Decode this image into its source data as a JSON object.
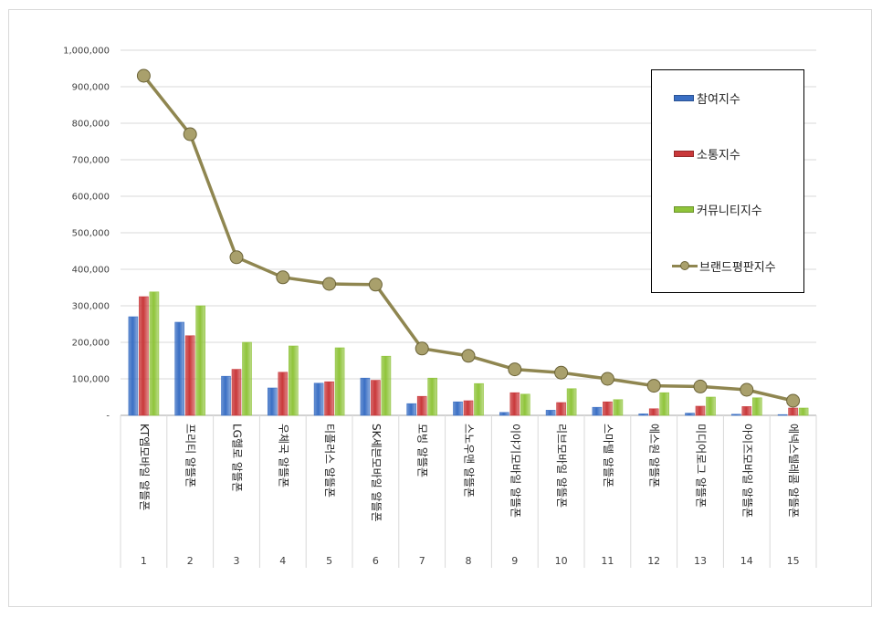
{
  "chart_data": {
    "type": "bar+line",
    "categories": [
      "KT엠모바일 알뜰폰",
      "프리티 알뜰폰",
      "LG헬로 알뜰폰",
      "우체국 알뜰폰",
      "티플러스 알뜰폰",
      "SK세븐모바일 알뜰폰",
      "모빙 알뜰폰",
      "스노우맨 알뜰폰",
      "이야기모바일 알뜰폰",
      "리브모바일 알뜰폰",
      "스마텔 알뜰폰",
      "에스원 알뜰폰",
      "미디어로그 알뜰폰",
      "아이즈모바일 알뜰폰",
      "에넥스텔레콤 알뜰폰"
    ],
    "ranks": [
      "1",
      "2",
      "3",
      "4",
      "5",
      "6",
      "7",
      "8",
      "9",
      "10",
      "11",
      "12",
      "13",
      "14",
      "15"
    ],
    "yticks": [
      "-",
      "100,000",
      "200,000",
      "300,000",
      "400,000",
      "500,000",
      "600,000",
      "700,000",
      "800,000",
      "900,000",
      "1,000,000"
    ],
    "ylim": [
      0,
      1000000
    ],
    "series": [
      {
        "name": "참여지수",
        "kind": "bar",
        "color": "#3a6fc4",
        "values": [
          270000,
          255000,
          107000,
          75000,
          88000,
          102000,
          32000,
          37000,
          8000,
          14000,
          22000,
          4000,
          6000,
          3000,
          2000
        ]
      },
      {
        "name": "소통지수",
        "kind": "bar",
        "color": "#c9383a",
        "values": [
          325000,
          218000,
          126000,
          118000,
          92000,
          96000,
          52000,
          40000,
          62000,
          35000,
          37000,
          18000,
          25000,
          24000,
          20000
        ]
      },
      {
        "name": "커뮤니티지수",
        "kind": "bar",
        "color": "#8fc43a",
        "values": [
          338000,
          300000,
          200000,
          190000,
          185000,
          162000,
          102000,
          87000,
          58000,
          73000,
          43000,
          62000,
          50000,
          48000,
          20000
        ]
      },
      {
        "name": "브랜드평판지수",
        "kind": "line",
        "color": "#8f8650",
        "values": [
          930000,
          770000,
          433000,
          378000,
          360000,
          358000,
          183000,
          163000,
          126000,
          117000,
          100000,
          81000,
          79000,
          70000,
          40000
        ]
      }
    ],
    "grid": true,
    "legend": "right"
  }
}
